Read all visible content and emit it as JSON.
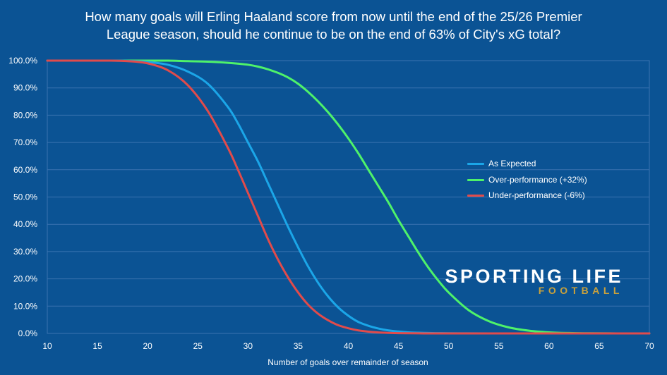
{
  "chart_data": {
    "type": "line",
    "title_line1": "How many goals will Erling Haaland score from now until the end of the 25/26 Premier",
    "title_line2": "League season, should he continue to be on the end of 63% of City's xG total?",
    "xlabel": "Number of goals over remainder of season",
    "ylabel": "",
    "xlim": [
      10,
      70
    ],
    "ylim": [
      0,
      100
    ],
    "x_ticks": [
      "10",
      "15",
      "20",
      "25",
      "30",
      "35",
      "40",
      "45",
      "50",
      "55",
      "60",
      "65",
      "70"
    ],
    "y_ticks": [
      "0.0%",
      "10.0%",
      "20.0%",
      "30.0%",
      "40.0%",
      "50.0%",
      "60.0%",
      "70.0%",
      "80.0%",
      "90.0%",
      "100.0%"
    ],
    "grid": true,
    "legend_position": "right",
    "x": [
      10,
      12,
      14,
      16,
      18,
      20,
      22,
      24,
      26,
      28,
      29,
      30,
      31,
      32,
      33,
      34,
      35,
      36,
      37,
      38,
      39,
      40,
      41,
      42,
      43,
      44,
      45,
      46,
      47,
      48,
      49,
      50,
      52,
      54,
      56,
      58,
      60,
      62,
      64,
      66,
      68,
      70
    ],
    "series": [
      {
        "name": "As Expected",
        "color": "#1ba6e8",
        "values": [
          100,
          100,
          100,
          100,
          99.9,
          99.5,
          98.5,
          96,
          91.5,
          83,
          77,
          70,
          63,
          55,
          47,
          39,
          31.5,
          24.5,
          18.5,
          13.5,
          9.5,
          6.5,
          4.2,
          2.8,
          1.8,
          1.1,
          0.7,
          0.4,
          0.25,
          0.15,
          0.1,
          0.05,
          0.02,
          0.01,
          0,
          0,
          0,
          0,
          0,
          0,
          0,
          0
        ]
      },
      {
        "name": "Over-performance (+32%)",
        "color": "#4ef26a",
        "values": [
          100,
          100,
          100,
          100,
          100,
          100,
          100,
          99.8,
          99.6,
          99.2,
          98.9,
          98.5,
          97.8,
          96.8,
          95.5,
          93.8,
          91.5,
          88.5,
          85,
          81,
          76.5,
          71.5,
          66,
          60,
          54,
          48,
          41.5,
          35.5,
          29.5,
          24,
          19.2,
          15,
          8.5,
          4.5,
          2.2,
          1,
          0.4,
          0.15,
          0.05,
          0.02,
          0,
          0
        ]
      },
      {
        "name": "Under-performance (-6%)",
        "color": "#e14b4b",
        "values": [
          100,
          100,
          100,
          100,
          99.8,
          99,
          96.5,
          91,
          81.5,
          68,
          60,
          51.5,
          43,
          34.5,
          27,
          20.5,
          15,
          10.5,
          7.2,
          4.8,
          3,
          1.9,
          1.1,
          0.65,
          0.35,
          0.2,
          0.1,
          0.05,
          0.02,
          0.01,
          0,
          0,
          0,
          0,
          0,
          0,
          0,
          0,
          0,
          0,
          0,
          0
        ]
      }
    ]
  },
  "branding": {
    "name": "SPORTING LIFE",
    "subname": "FOOTBALL",
    "accent_color": "#c9a13b"
  }
}
